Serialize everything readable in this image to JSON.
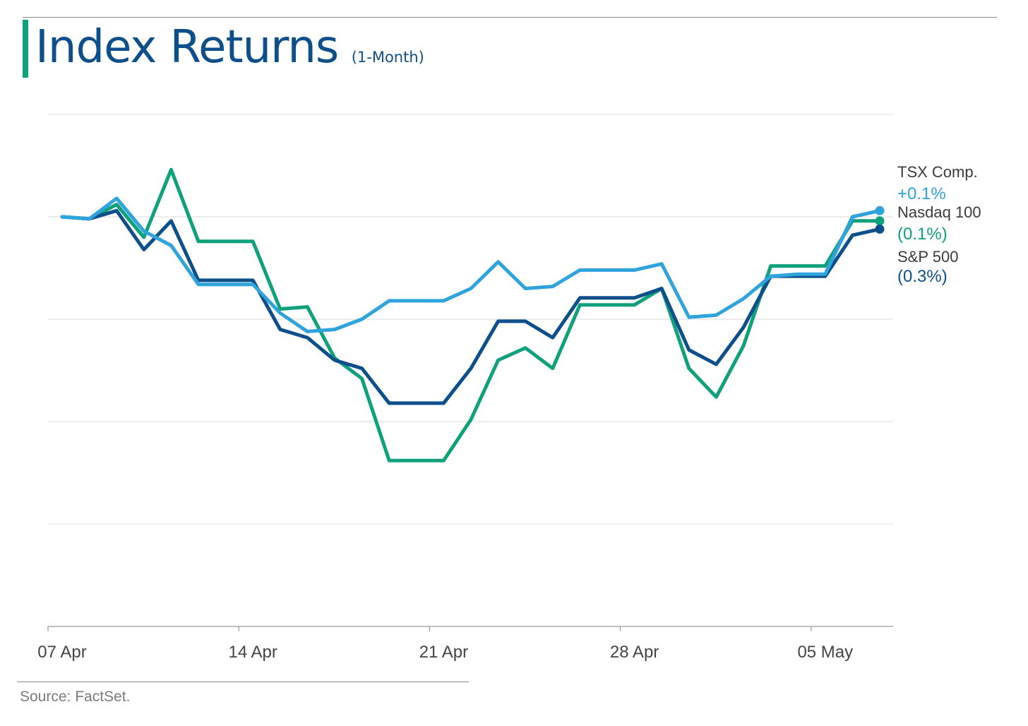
{
  "header": {
    "title": "Index Returns",
    "subtitle": "(1-Month)"
  },
  "footer": {
    "source": "Source: FactSet."
  },
  "colors": {
    "tsx": "#2ea3dc",
    "nasdaq": "#0fa07c",
    "sp500": "#0d4f8b",
    "grid": "#d9d9d9",
    "axis_text": "#444444",
    "label_text": "#3a3a3a"
  },
  "chart_data": {
    "type": "line",
    "title": "Index Returns",
    "subtitle": "(1-Month)",
    "xlabel": "",
    "ylabel": "",
    "grid": true,
    "legend": "right end labels",
    "x_tick_labels": [
      "07 Apr",
      "14 Apr",
      "21 Apr",
      "28 Apr",
      "05 May"
    ],
    "x_tick_days": [
      0,
      7,
      14,
      21,
      28
    ],
    "x_days": [
      0,
      1,
      2,
      3,
      4,
      5,
      6,
      7,
      8,
      9,
      10,
      11,
      12,
      13,
      14,
      15,
      16,
      17,
      18,
      19,
      20,
      21,
      22,
      23,
      24,
      25,
      26,
      27,
      28,
      29,
      30
    ],
    "ylim": [
      -10,
      2.5
    ],
    "y_gridlines": [
      2.5,
      0,
      -2.5,
      -5,
      -7.5,
      -10
    ],
    "series": [
      {
        "name": "TSX Comp.",
        "end_label": "+0.1%",
        "color": "#2ea3dc",
        "values": [
          0,
          -0.05,
          0.45,
          -0.35,
          -0.7,
          -1.65,
          -1.65,
          -1.65,
          -2.35,
          -2.8,
          -2.75,
          -2.5,
          -2.05,
          -2.05,
          -2.05,
          -1.75,
          -1.1,
          -1.75,
          -1.7,
          -1.3,
          -1.3,
          -1.3,
          -1.15,
          -2.45,
          -2.4,
          -2.0,
          -1.45,
          -1.4,
          -1.4,
          0.0,
          0.15
        ]
      },
      {
        "name": "Nasdaq 100",
        "end_label": "(0.1%)",
        "color": "#0fa07c",
        "values": [
          0,
          -0.05,
          0.3,
          -0.5,
          1.15,
          -0.6,
          -0.6,
          -0.6,
          -2.25,
          -2.2,
          -3.45,
          -3.95,
          -5.95,
          -5.95,
          -5.95,
          -4.95,
          -3.5,
          -3.2,
          -3.7,
          -2.15,
          -2.15,
          -2.15,
          -1.75,
          -3.7,
          -4.4,
          -3.15,
          -1.2,
          -1.2,
          -1.2,
          -0.1,
          -0.1
        ]
      },
      {
        "name": "S&P 500",
        "end_label": "(0.3%)",
        "color": "#0d4f8b",
        "values": [
          0,
          -0.05,
          0.15,
          -0.8,
          -0.1,
          -1.55,
          -1.55,
          -1.55,
          -2.75,
          -2.95,
          -3.5,
          -3.7,
          -4.55,
          -4.55,
          -4.55,
          -3.7,
          -2.55,
          -2.55,
          -2.95,
          -1.98,
          -1.98,
          -1.98,
          -1.75,
          -3.25,
          -3.6,
          -2.7,
          -1.45,
          -1.45,
          -1.45,
          -0.45,
          -0.3
        ]
      }
    ]
  }
}
